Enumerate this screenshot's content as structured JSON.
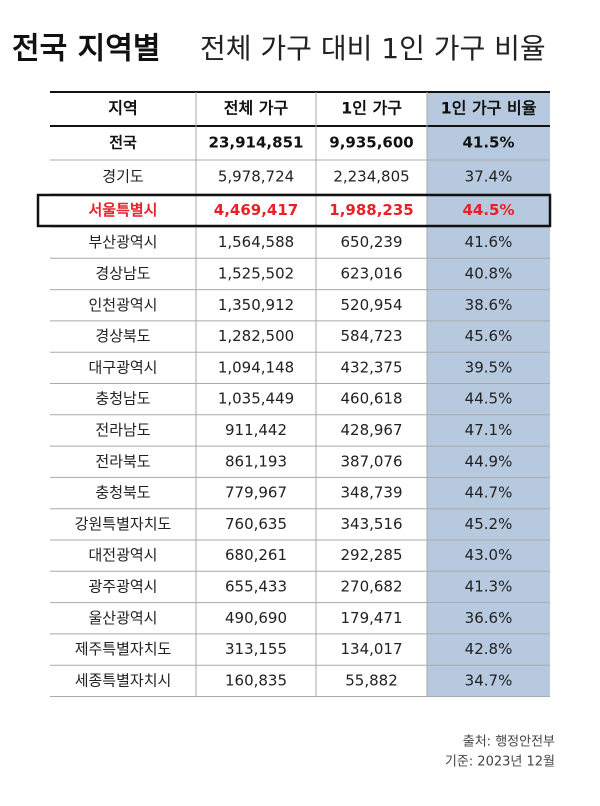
{
  "title": {
    "bold": "전국 지역별",
    "rest": "전체 가구 대비 1인 가구 비율"
  },
  "table": {
    "header": [
      "지역",
      "전체 가구",
      "1인 가구",
      "1인 가구 비율"
    ],
    "rows": [
      [
        "전국",
        "23,914,851",
        "9,935,600",
        "41.5%"
      ],
      [
        "경기도",
        "5,978,724",
        "2,234,805",
        "37.4%"
      ],
      [
        "서울특별시",
        "4,469,417",
        "1,988,235",
        "44.5%"
      ],
      [
        "부산광역시",
        "1,564,588",
        "650,239",
        "41.6%"
      ],
      [
        "경상남도",
        "1,525,502",
        "623,016",
        "40.8%"
      ],
      [
        "인천광역시",
        "1,350,912",
        "520,954",
        "38.6%"
      ],
      [
        "경상북도",
        "1,282,500",
        "584,723",
        "45.6%"
      ],
      [
        "대구광역시",
        "1,094,148",
        "432,375",
        "39.5%"
      ],
      [
        "충청남도",
        "1,035,449",
        "460,618",
        "44.5%"
      ],
      [
        "전라남도",
        "911,442",
        "428,967",
        "47.1%"
      ],
      [
        "전라북도",
        "861,193",
        "387,076",
        "44.9%"
      ],
      [
        "충청북도",
        "779,967",
        "348,739",
        "44.7%"
      ],
      [
        "강원특별자치도",
        "760,635",
        "343,516",
        "45.2%"
      ],
      [
        "대전광역시",
        "680,261",
        "292,285",
        "43.0%"
      ],
      [
        "광주광역시",
        "655,433",
        "270,682",
        "41.3%"
      ],
      [
        "울산광역시",
        "490,690",
        "179,471",
        "36.6%"
      ],
      [
        "제주특별자치도",
        "313,155",
        "134,017",
        "42.8%"
      ],
      [
        "세종특별자치시",
        "160,835",
        "55,882",
        "34.7%"
      ]
    ]
  },
  "source": {
    "line1": "출처: 행정안전부",
    "line2": "기준: 2023년 12월"
  }
}
